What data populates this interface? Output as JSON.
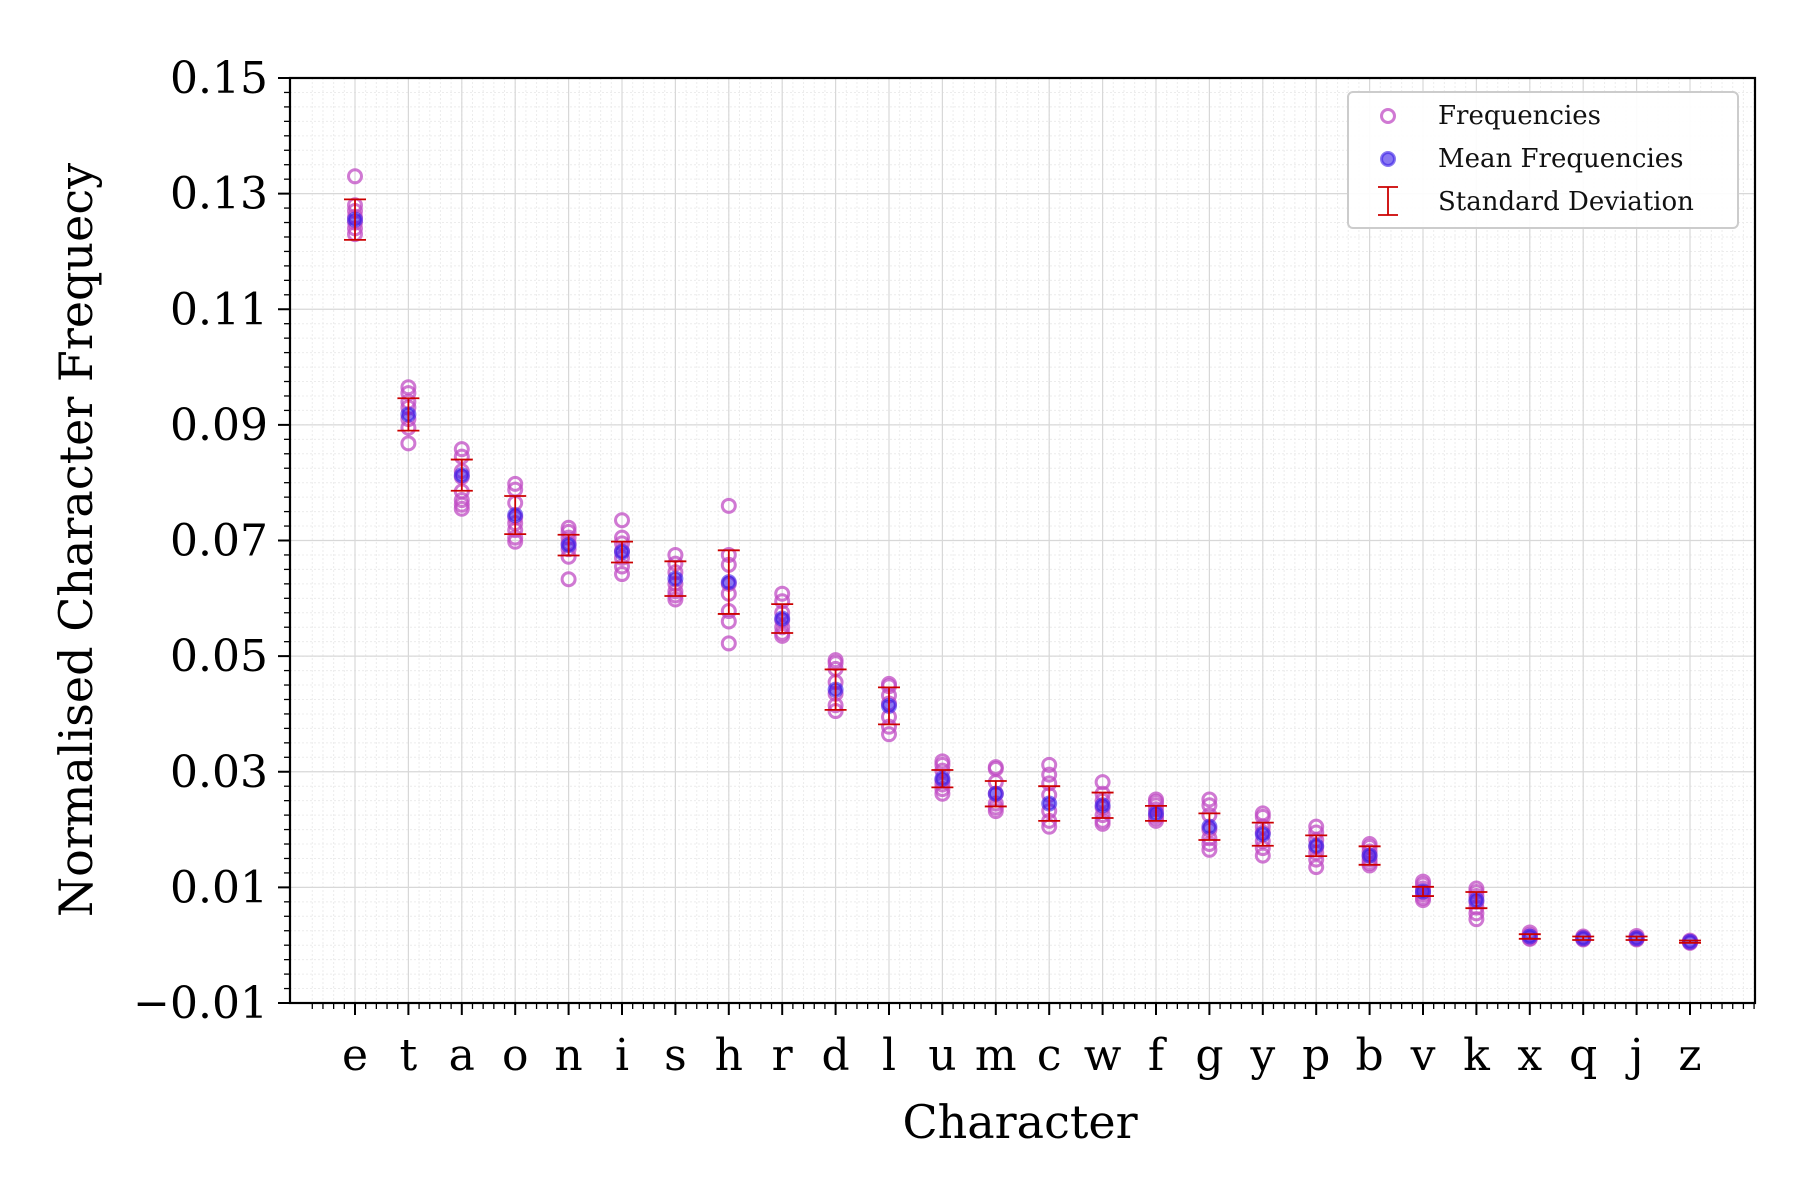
{
  "chart_data": {
    "type": "scatter",
    "xlabel": "Character",
    "ylabel": "Normalised Character Frequecy",
    "ylim": [
      -0.01,
      0.15
    ],
    "yticks": [
      -0.01,
      0.01,
      0.03,
      0.05,
      0.07,
      0.09,
      0.11,
      0.13,
      0.15
    ],
    "ytick_labels": [
      "−0.01",
      "0.01",
      "0.03",
      "0.05",
      "0.07",
      "0.09",
      "0.11",
      "0.13",
      "0.15"
    ],
    "grid": true,
    "legend_position": "top-right",
    "legend": [
      "Frequencies",
      "Mean Frequencies",
      "Standard Deviation"
    ],
    "colors": {
      "frequencies": "#c04cc4",
      "mean": "#3a1ee8",
      "std": "#cc0000",
      "grid_major": "#d8d8d8",
      "grid_minor": "#ececec"
    },
    "categories": [
      "e",
      "t",
      "a",
      "o",
      "n",
      "i",
      "s",
      "h",
      "r",
      "d",
      "l",
      "u",
      "m",
      "c",
      "w",
      "f",
      "g",
      "y",
      "p",
      "b",
      "v",
      "k",
      "x",
      "q",
      "j",
      "z"
    ],
    "series": [
      {
        "name": "Frequencies",
        "values": [
          [
            0.133,
            0.128,
            0.127,
            0.126,
            0.125,
            0.124,
            0.123
          ],
          [
            0.0965,
            0.0955,
            0.094,
            0.093,
            0.091,
            0.0895,
            0.0868
          ],
          [
            0.0858,
            0.0845,
            0.082,
            0.081,
            0.0785,
            0.077,
            0.0762,
            0.0755
          ],
          [
            0.0798,
            0.0788,
            0.0765,
            0.074,
            0.073,
            0.0718,
            0.0705,
            0.0698
          ],
          [
            0.0722,
            0.0715,
            0.0705,
            0.0695,
            0.0685,
            0.0672,
            0.0633
          ],
          [
            0.0735,
            0.0705,
            0.0695,
            0.0682,
            0.067,
            0.0655,
            0.0642
          ],
          [
            0.0675,
            0.066,
            0.0645,
            0.0625,
            0.0612,
            0.0605,
            0.0598
          ],
          [
            0.076,
            0.0675,
            0.0658,
            0.0625,
            0.0608,
            0.0578,
            0.056,
            0.0522
          ],
          [
            0.0608,
            0.0595,
            0.0575,
            0.0562,
            0.055,
            0.054,
            0.0535
          ],
          [
            0.0493,
            0.0488,
            0.0478,
            0.0455,
            0.0435,
            0.0415,
            0.0405
          ],
          [
            0.0452,
            0.0448,
            0.0432,
            0.0418,
            0.0395,
            0.0378,
            0.0365
          ],
          [
            0.0318,
            0.0312,
            0.0302,
            0.0285,
            0.0278,
            0.027,
            0.0262
          ],
          [
            0.0308,
            0.0305,
            0.0282,
            0.0262,
            0.0245,
            0.0238,
            0.0232
          ],
          [
            0.0312,
            0.0295,
            0.028,
            0.026,
            0.0232,
            0.0215,
            0.0205
          ],
          [
            0.0282,
            0.0262,
            0.025,
            0.0238,
            0.0225,
            0.0215,
            0.021
          ],
          [
            0.0252,
            0.0248,
            0.0242,
            0.0235,
            0.0225,
            0.022,
            0.0215
          ],
          [
            0.0252,
            0.0242,
            0.0225,
            0.02,
            0.0185,
            0.0175,
            0.0165
          ],
          [
            0.0228,
            0.0222,
            0.0205,
            0.0195,
            0.018,
            0.0168,
            0.0155
          ],
          [
            0.0205,
            0.0195,
            0.0182,
            0.017,
            0.016,
            0.0148,
            0.0135
          ],
          [
            0.0175,
            0.017,
            0.0162,
            0.0155,
            0.0148,
            0.0142,
            0.0138
          ],
          [
            0.011,
            0.0105,
            0.0098,
            0.0092,
            0.0088,
            0.0082,
            0.0078
          ],
          [
            0.0098,
            0.0092,
            0.0085,
            0.0075,
            0.0065,
            0.0055,
            0.0045
          ],
          [
            0.0022,
            0.0018,
            0.0015,
            0.0012,
            0.0011
          ],
          [
            0.0015,
            0.0013,
            0.0011,
            0.001
          ],
          [
            0.0016,
            0.0013,
            0.0011,
            0.001
          ],
          [
            0.0008,
            0.0006,
            0.0005,
            0.0004
          ]
        ]
      },
      {
        "name": "Mean Frequencies",
        "values": [
          0.1255,
          0.0918,
          0.0813,
          0.0744,
          0.0692,
          0.068,
          0.0634,
          0.0628,
          0.0565,
          0.0442,
          0.0414,
          0.0288,
          0.0262,
          0.0245,
          0.0242,
          0.0228,
          0.0205,
          0.0192,
          0.0172,
          0.0155,
          0.0093,
          0.0078,
          0.0015,
          0.0012,
          0.0012,
          0.0006
        ]
      },
      {
        "name": "Standard Deviation",
        "values": [
          0.0035,
          0.0028,
          0.0027,
          0.0033,
          0.0018,
          0.0018,
          0.003,
          0.0055,
          0.0025,
          0.0035,
          0.0032,
          0.0015,
          0.0022,
          0.003,
          0.0022,
          0.0013,
          0.0023,
          0.002,
          0.0018,
          0.0016,
          0.0008,
          0.0014,
          0.0004,
          0.0003,
          0.0003,
          0.0002
        ]
      }
    ]
  }
}
